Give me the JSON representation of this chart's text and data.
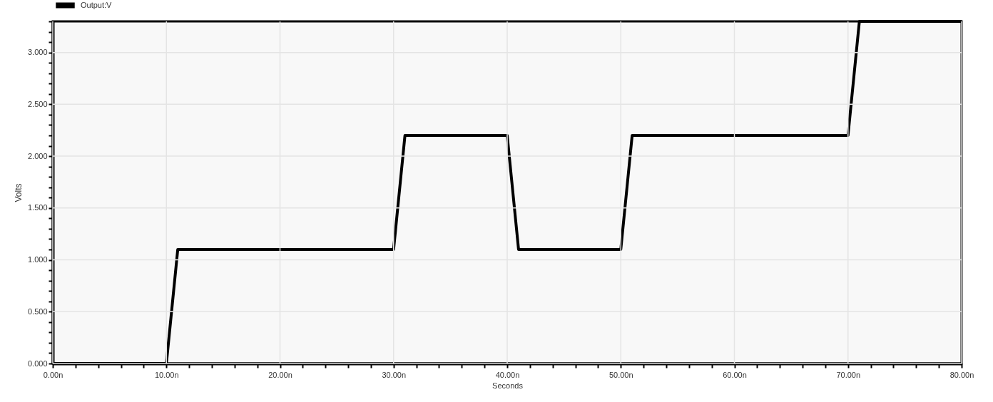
{
  "chart_data": {
    "type": "line",
    "xlabel": "Seconds",
    "ylabel": "Volts",
    "x": [
      0,
      10,
      11,
      30,
      31,
      40,
      41,
      50,
      51,
      70,
      71,
      80
    ],
    "series": [
      {
        "name": "Output:V",
        "color": "#000000",
        "values": [
          0,
          0,
          1.1,
          1.1,
          2.2,
          2.2,
          1.1,
          1.1,
          2.2,
          2.2,
          3.3,
          3.3
        ]
      }
    ],
    "xlim": [
      0,
      80
    ],
    "xticks": [
      {
        "value": 0,
        "label": "0.00n"
      },
      {
        "value": 2,
        "label": null
      },
      {
        "value": 4,
        "label": null
      },
      {
        "value": 6,
        "label": null
      },
      {
        "value": 8,
        "label": null
      },
      {
        "value": 10,
        "label": "10.00n"
      },
      {
        "value": 12,
        "label": null
      },
      {
        "value": 14,
        "label": null
      },
      {
        "value": 16,
        "label": null
      },
      {
        "value": 18,
        "label": null
      },
      {
        "value": 20,
        "label": "20.00n"
      },
      {
        "value": 22,
        "label": null
      },
      {
        "value": 24,
        "label": null
      },
      {
        "value": 26,
        "label": null
      },
      {
        "value": 28,
        "label": null
      },
      {
        "value": 30,
        "label": "30.00n"
      },
      {
        "value": 32,
        "label": null
      },
      {
        "value": 34,
        "label": null
      },
      {
        "value": 36,
        "label": null
      },
      {
        "value": 38,
        "label": null
      },
      {
        "value": 40,
        "label": "40.00n"
      },
      {
        "value": 42,
        "label": null
      },
      {
        "value": 44,
        "label": null
      },
      {
        "value": 46,
        "label": null
      },
      {
        "value": 48,
        "label": null
      },
      {
        "value": 50,
        "label": "50.00n"
      },
      {
        "value": 52,
        "label": null
      },
      {
        "value": 54,
        "label": null
      },
      {
        "value": 56,
        "label": null
      },
      {
        "value": 58,
        "label": null
      },
      {
        "value": 60,
        "label": "60.00n"
      },
      {
        "value": 62,
        "label": null
      },
      {
        "value": 64,
        "label": null
      },
      {
        "value": 66,
        "label": null
      },
      {
        "value": 68,
        "label": null
      },
      {
        "value": 70,
        "label": "70.00n"
      },
      {
        "value": 72,
        "label": null
      },
      {
        "value": 74,
        "label": null
      },
      {
        "value": 76,
        "label": null
      },
      {
        "value": 78,
        "label": null
      },
      {
        "value": 80,
        "label": "80.00n"
      }
    ],
    "ylim": [
      0,
      3.3
    ],
    "yticks": [
      {
        "value": 0,
        "label": "0.000"
      },
      {
        "value": 0.1,
        "label": null
      },
      {
        "value": 0.2,
        "label": null
      },
      {
        "value": 0.3,
        "label": null
      },
      {
        "value": 0.4,
        "label": null
      },
      {
        "value": 0.5,
        "label": "0.500"
      },
      {
        "value": 0.6,
        "label": null
      },
      {
        "value": 0.7,
        "label": null
      },
      {
        "value": 0.8,
        "label": null
      },
      {
        "value": 0.9,
        "label": null
      },
      {
        "value": 1,
        "label": "1.000"
      },
      {
        "value": 1.1,
        "label": null
      },
      {
        "value": 1.2,
        "label": null
      },
      {
        "value": 1.3,
        "label": null
      },
      {
        "value": 1.4,
        "label": null
      },
      {
        "value": 1.5,
        "label": "1.500"
      },
      {
        "value": 1.6,
        "label": null
      },
      {
        "value": 1.7,
        "label": null
      },
      {
        "value": 1.8,
        "label": null
      },
      {
        "value": 1.9,
        "label": null
      },
      {
        "value": 2,
        "label": "2.000"
      },
      {
        "value": 2.1,
        "label": null
      },
      {
        "value": 2.2,
        "label": null
      },
      {
        "value": 2.3,
        "label": null
      },
      {
        "value": 2.4,
        "label": null
      },
      {
        "value": 2.5,
        "label": "2.500"
      },
      {
        "value": 2.6,
        "label": null
      },
      {
        "value": 2.7,
        "label": null
      },
      {
        "value": 2.8,
        "label": null
      },
      {
        "value": 2.9,
        "label": null
      },
      {
        "value": 3,
        "label": "3.000"
      },
      {
        "value": 3.1,
        "label": null
      },
      {
        "value": 3.2,
        "label": null
      },
      {
        "value": 3.3,
        "label": null
      }
    ],
    "grid": true,
    "legend": "top left",
    "marker": "none",
    "line_style": "solid"
  }
}
